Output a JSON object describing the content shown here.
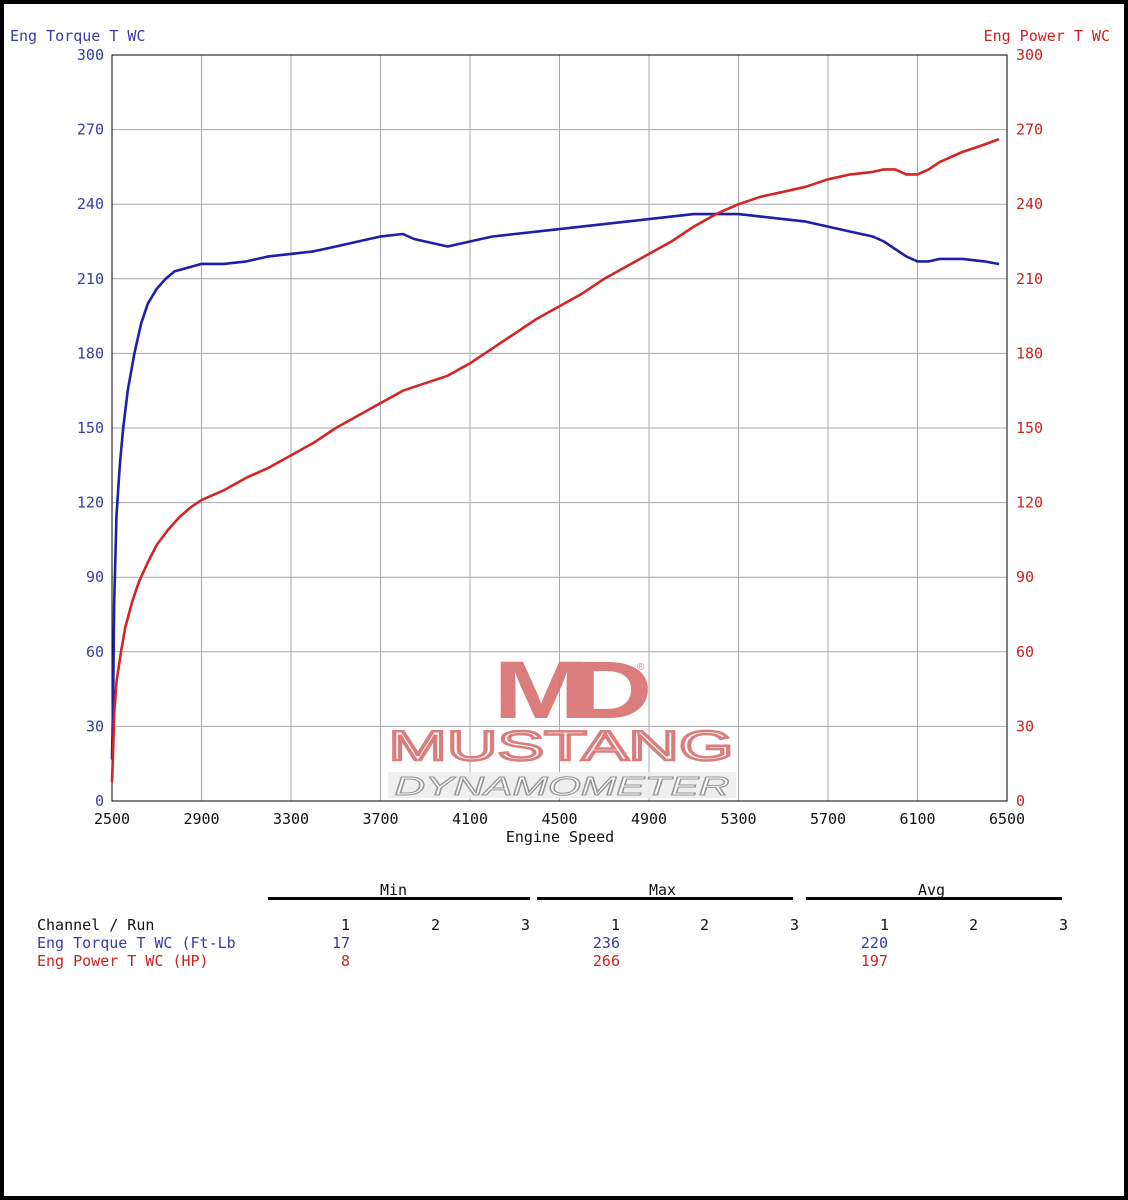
{
  "colors": {
    "torque": "#1f1fa8",
    "power": "#d42525",
    "torque_text": "#3a3aa8",
    "power_text": "#cc2222",
    "grid": "#a8a8a8",
    "logo": "#d97070"
  },
  "chart_data": {
    "type": "line",
    "left_axis_title": "Eng Torque T WC",
    "right_axis_title": "Eng Power T WC",
    "xlabel": "Engine Speed",
    "xlim": [
      2500,
      6500
    ],
    "ylim": [
      0,
      300
    ],
    "x_ticks": [
      2500,
      2900,
      3300,
      3700,
      4100,
      4500,
      4900,
      5300,
      5700,
      6100,
      6500
    ],
    "y_ticks": [
      0,
      30,
      60,
      90,
      120,
      150,
      180,
      210,
      240,
      270,
      300
    ],
    "grid": true,
    "series": [
      {
        "name": "Eng Torque T WC (Ft-Lb",
        "axis": "left",
        "x": [
          2500,
          2505,
          2510,
          2520,
          2535,
          2550,
          2570,
          2600,
          2630,
          2660,
          2700,
          2740,
          2780,
          2820,
          2860,
          2900,
          2950,
          3000,
          3100,
          3200,
          3300,
          3400,
          3500,
          3600,
          3700,
          3800,
          3850,
          3900,
          4000,
          4100,
          4200,
          4300,
          4400,
          4500,
          4600,
          4700,
          4800,
          4900,
          5000,
          5100,
          5200,
          5300,
          5400,
          5500,
          5600,
          5700,
          5800,
          5900,
          5950,
          6000,
          6050,
          6100,
          6150,
          6200,
          6300,
          6400,
          6460
        ],
        "y": [
          17,
          40,
          80,
          115,
          135,
          150,
          165,
          180,
          192,
          200,
          206,
          210,
          213,
          214,
          215,
          216,
          216,
          216,
          217,
          219,
          220,
          221,
          223,
          225,
          227,
          228,
          226,
          225,
          223,
          225,
          227,
          228,
          229,
          230,
          231,
          232,
          233,
          234,
          235,
          236,
          236,
          236,
          235,
          234,
          233,
          231,
          229,
          227,
          225,
          222,
          219,
          217,
          217,
          218,
          218,
          217,
          216
        ]
      },
      {
        "name": "Eng Power T WC (HP)",
        "axis": "right",
        "x": [
          2500,
          2505,
          2510,
          2520,
          2540,
          2560,
          2590,
          2620,
          2660,
          2700,
          2750,
          2800,
          2850,
          2900,
          3000,
          3100,
          3200,
          3300,
          3400,
          3500,
          3600,
          3700,
          3800,
          3900,
          4000,
          4100,
          4200,
          4300,
          4400,
          4500,
          4600,
          4700,
          4800,
          4900,
          5000,
          5100,
          5200,
          5300,
          5400,
          5500,
          5600,
          5700,
          5800,
          5900,
          5950,
          6000,
          6050,
          6100,
          6150,
          6200,
          6300,
          6400,
          6460
        ],
        "y": [
          8,
          20,
          35,
          48,
          60,
          70,
          80,
          88,
          96,
          103,
          109,
          114,
          118,
          121,
          125,
          130,
          134,
          139,
          144,
          150,
          155,
          160,
          165,
          168,
          171,
          176,
          182,
          188,
          194,
          199,
          204,
          210,
          215,
          220,
          225,
          231,
          236,
          240,
          243,
          245,
          247,
          250,
          252,
          253,
          254,
          254,
          252,
          252,
          254,
          257,
          261,
          264,
          266
        ]
      }
    ]
  },
  "logo": {
    "mark": "MD",
    "reg": "®",
    "name": "MUSTANG",
    "sub": "DYNAMOMETER"
  },
  "stats": {
    "groups": [
      "Min",
      "Max",
      "Avg"
    ],
    "header_label": "Channel / Run",
    "runs": [
      "1",
      "2",
      "3"
    ],
    "rows": [
      {
        "label": "Eng Torque T WC (Ft-Lb",
        "min": "17",
        "max": "236",
        "avg": "220"
      },
      {
        "label": "Eng Power T WC (HP)",
        "min": "8",
        "max": "266",
        "avg": "197"
      }
    ]
  }
}
